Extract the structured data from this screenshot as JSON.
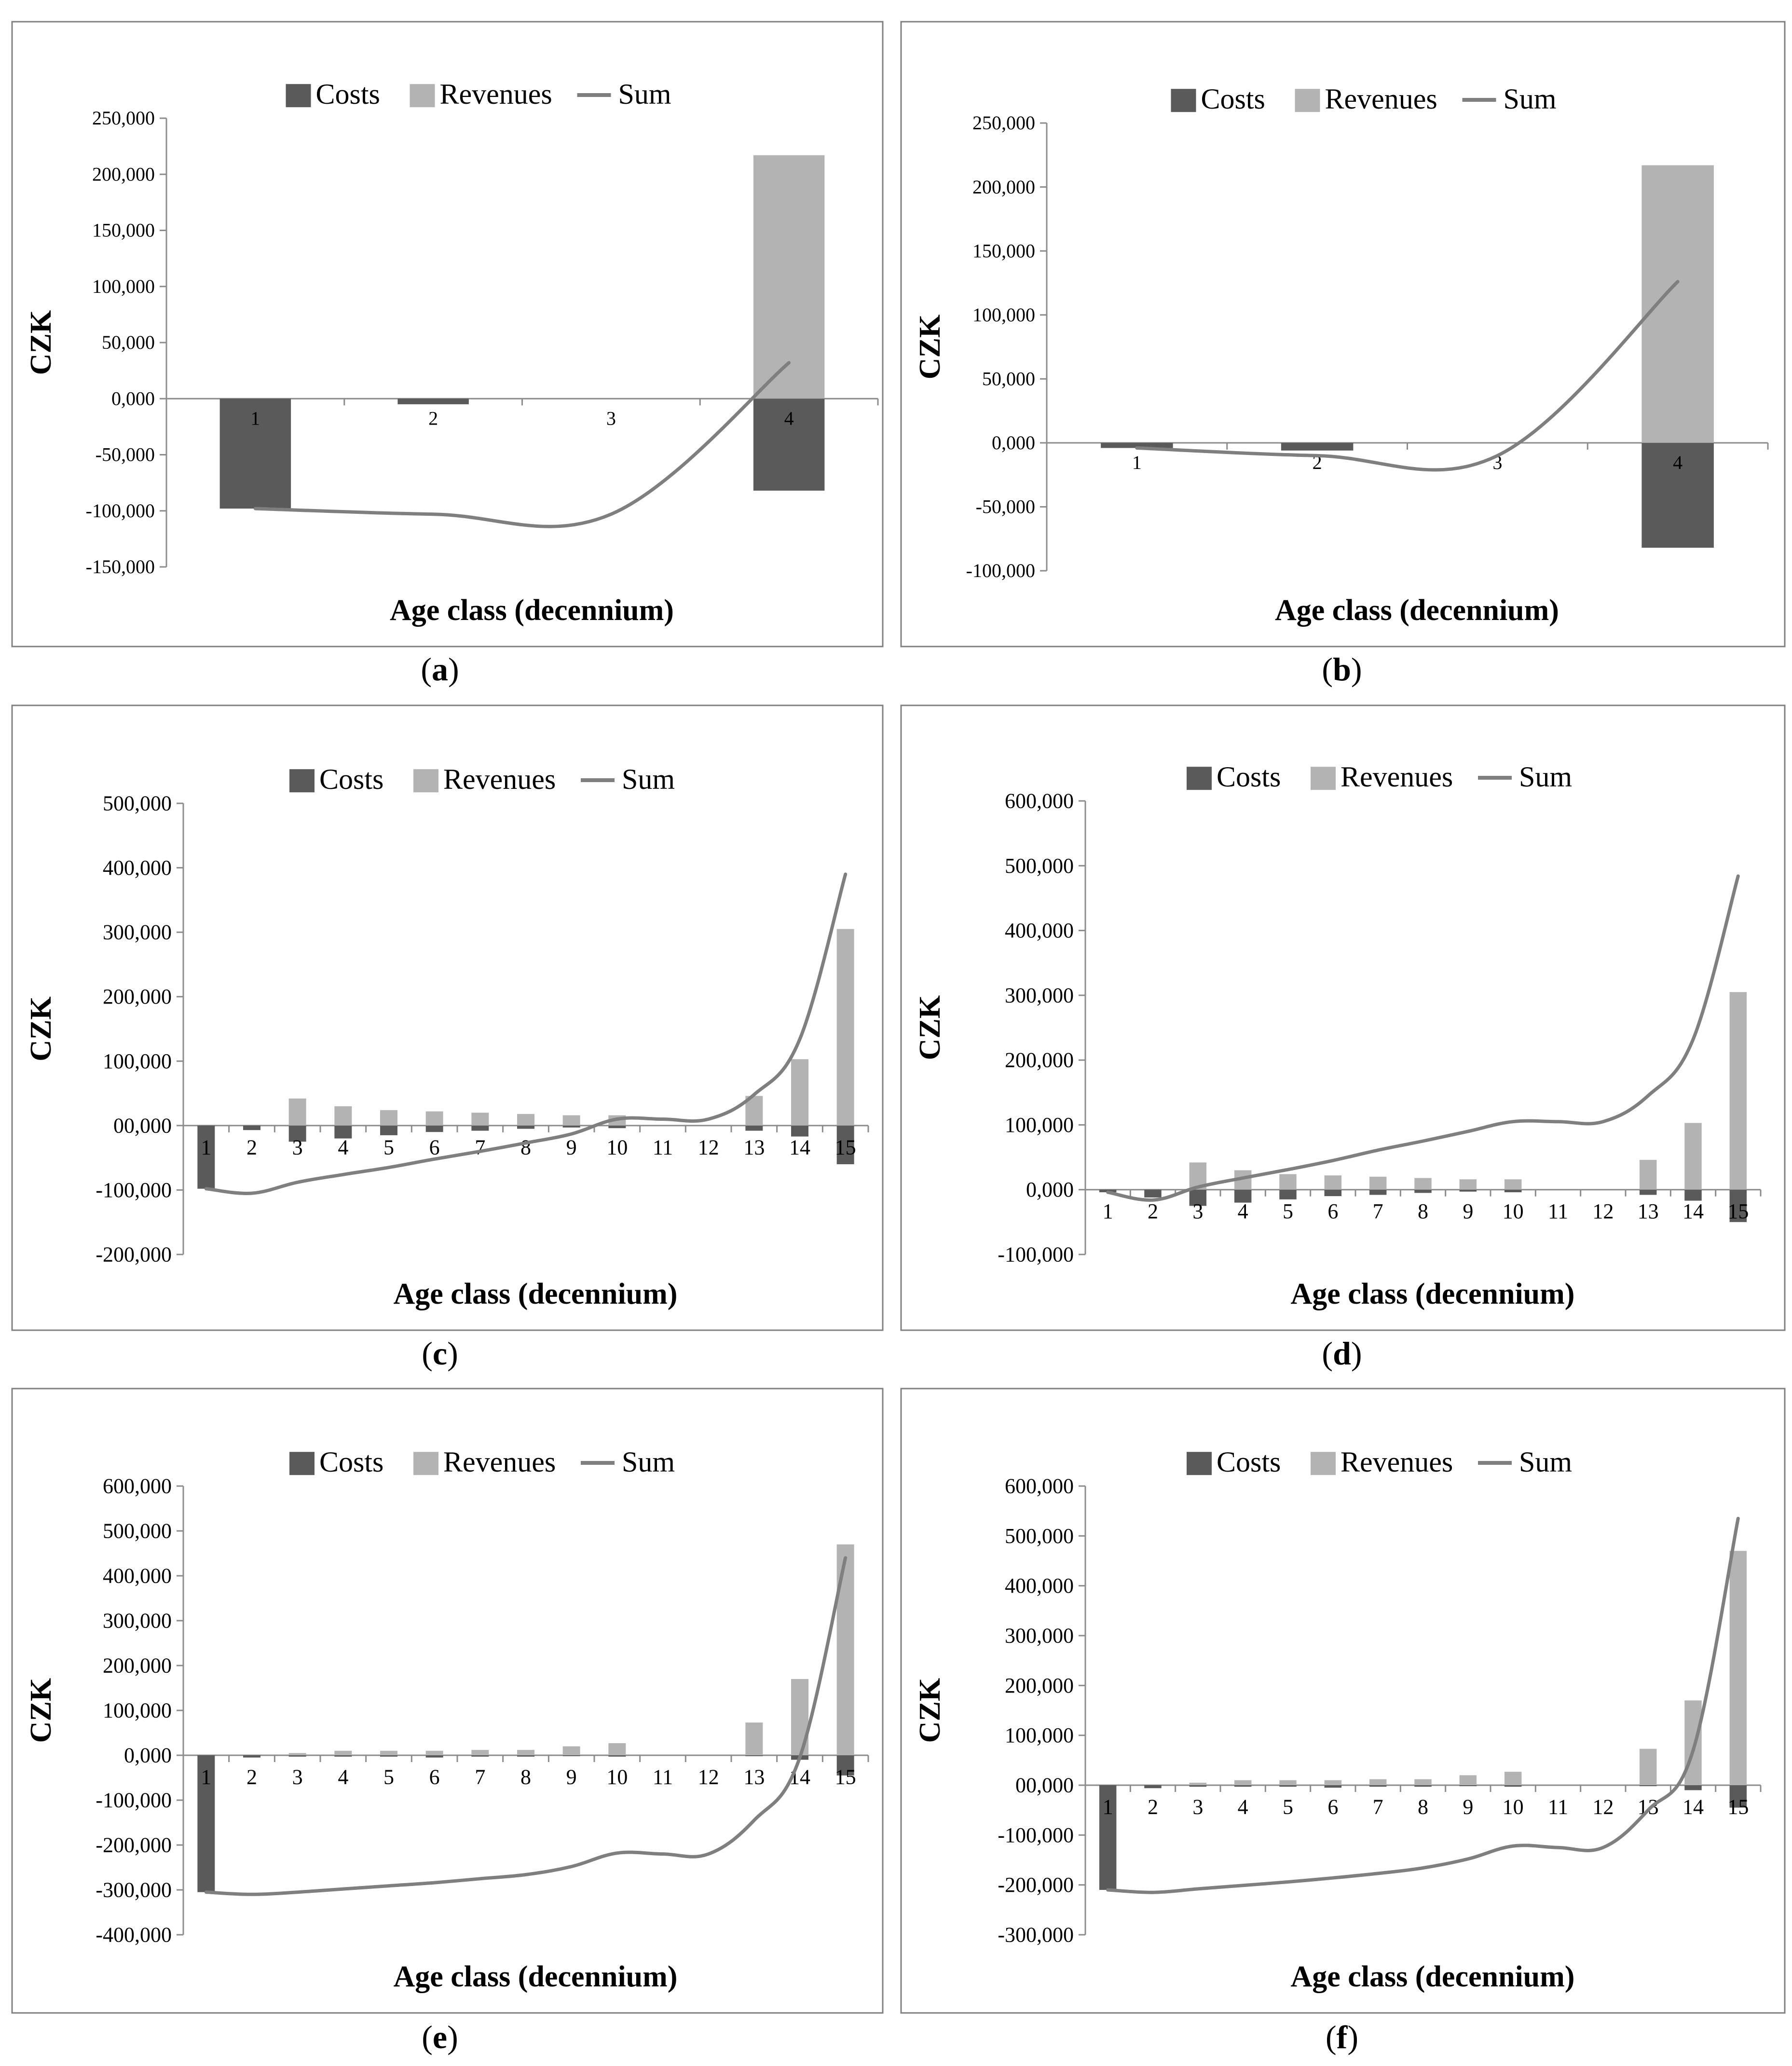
{
  "figure": {
    "colors": {
      "costs": "#5a5a5a",
      "revenues": "#b3b3b3",
      "sum": "#7f7f7f",
      "axis": "#8c8c8c",
      "border": "#808080"
    }
  },
  "chart_data": [
    {
      "id": "a",
      "type": "bar",
      "panel_label": "(a)",
      "ylabel": "CZK",
      "xlabel": "Age class (decennium)",
      "legend": [
        "Costs",
        "Revenues",
        "Sum"
      ],
      "legend_position": "top-center",
      "ylim": [
        -150000,
        250000
      ],
      "yticks": [
        250000,
        200000,
        150000,
        100000,
        50000,
        0,
        -50000,
        -100000,
        -150000
      ],
      "ytick_labels": [
        "250,000",
        "200,000",
        "150,000",
        "100,000",
        "50,000",
        "0,000",
        "-50,000",
        "-100,000",
        "-150,000"
      ],
      "categories": [
        "1",
        "2",
        "3",
        "4"
      ],
      "series": [
        {
          "name": "Costs",
          "values": [
            -98000,
            -5000,
            0,
            -82000
          ]
        },
        {
          "name": "Revenues",
          "values": [
            0,
            0,
            0,
            217000
          ]
        },
        {
          "name": "Sum",
          "values": [
            -98000,
            -103000,
            -103000,
            32000
          ]
        }
      ]
    },
    {
      "id": "b",
      "type": "bar",
      "panel_label": "(b)",
      "ylabel": "CZK",
      "xlabel": "Age class (decennium)",
      "legend": [
        "Costs",
        "Revenues",
        "Sum"
      ],
      "legend_position": "top-center",
      "ylim": [
        -100000,
        250000
      ],
      "yticks": [
        250000,
        200000,
        150000,
        100000,
        50000,
        0,
        -50000,
        -100000
      ],
      "ytick_labels": [
        "250,000",
        "200,000",
        "150,000",
        "100,000",
        "50,000",
        "0,000",
        "-50,000",
        "-100,000"
      ],
      "categories": [
        "1",
        "2",
        "3",
        "4"
      ],
      "series": [
        {
          "name": "Costs",
          "values": [
            -4000,
            -6000,
            0,
            -82000
          ]
        },
        {
          "name": "Revenues",
          "values": [
            0,
            0,
            0,
            217000
          ]
        },
        {
          "name": "Sum",
          "values": [
            -4000,
            -10000,
            -10000,
            126000
          ]
        }
      ]
    },
    {
      "id": "c",
      "type": "bar",
      "panel_label": "(c)",
      "ylabel": "CZK",
      "xlabel": "Age class (decennium)",
      "legend": [
        "Costs",
        "Revenues",
        "Sum"
      ],
      "legend_position": "top-center",
      "ylim": [
        -200000,
        500000
      ],
      "yticks": [
        500000,
        400000,
        300000,
        200000,
        100000,
        0,
        -100000,
        -200000
      ],
      "ytick_labels": [
        "500,000",
        "400,000",
        "300,000",
        "200,000",
        "100,000",
        "00,000",
        "-100,000",
        "-200,000"
      ],
      "categories": [
        "1",
        "2",
        "3",
        "4",
        "5",
        "6",
        "7",
        "8",
        "9",
        "10",
        "11",
        "12",
        "13",
        "14",
        "15"
      ],
      "series": [
        {
          "name": "Costs",
          "values": [
            -98000,
            -7000,
            -25000,
            -20000,
            -15000,
            -10000,
            -8000,
            -5000,
            -3000,
            -4000,
            0,
            0,
            -8000,
            -17000,
            -60000
          ]
        },
        {
          "name": "Revenues",
          "values": [
            0,
            0,
            42000,
            30000,
            24000,
            22000,
            20000,
            18000,
            16000,
            16000,
            0,
            0,
            46000,
            103000,
            305000
          ]
        },
        {
          "name": "Sum",
          "values": [
            -98000,
            -105000,
            -88000,
            -76000,
            -65000,
            -52000,
            -40000,
            -27000,
            -13000,
            10000,
            10000,
            10000,
            48000,
            134000,
            390000
          ]
        }
      ]
    },
    {
      "id": "d",
      "type": "bar",
      "panel_label": "(d)",
      "ylabel": "CZK",
      "xlabel": "Age class (decennium)",
      "legend": [
        "Costs",
        "Revenues",
        "Sum"
      ],
      "legend_position": "top-center",
      "ylim": [
        -100000,
        600000
      ],
      "yticks": [
        600000,
        500000,
        400000,
        300000,
        200000,
        100000,
        0,
        -100000
      ],
      "ytick_labels": [
        "600,000",
        "500,000",
        "400,000",
        "300,000",
        "200,000",
        "100,000",
        "0,000",
        "-100,000"
      ],
      "categories": [
        "1",
        "2",
        "3",
        "4",
        "5",
        "6",
        "7",
        "8",
        "9",
        "10",
        "11",
        "12",
        "13",
        "14",
        "15"
      ],
      "series": [
        {
          "name": "Costs",
          "values": [
            -4000,
            -12000,
            -25000,
            -20000,
            -15000,
            -10000,
            -8000,
            -5000,
            -3000,
            -4000,
            0,
            0,
            -8000,
            -17000,
            -50000
          ]
        },
        {
          "name": "Revenues",
          "values": [
            0,
            0,
            42000,
            30000,
            24000,
            22000,
            20000,
            18000,
            16000,
            16000,
            0,
            0,
            46000,
            103000,
            305000
          ]
        },
        {
          "name": "Sum",
          "values": [
            -4000,
            -16000,
            4000,
            18000,
            31000,
            45000,
            61000,
            75000,
            90000,
            105000,
            105000,
            105000,
            145000,
            232000,
            484000
          ]
        }
      ]
    },
    {
      "id": "e",
      "type": "bar",
      "panel_label": "(e)",
      "ylabel": "CZK",
      "xlabel": "Age class (decennium)",
      "legend": [
        "Costs",
        "Revenues",
        "Sum"
      ],
      "legend_position": "top-center",
      "ylim": [
        -400000,
        600000
      ],
      "yticks": [
        600000,
        500000,
        400000,
        300000,
        200000,
        100000,
        0,
        -100000,
        -200000,
        -300000,
        -400000
      ],
      "ytick_labels": [
        "600,000",
        "500,000",
        "400,000",
        "300,000",
        "200,000",
        "100,000",
        "0,000",
        "-100,000",
        "-200,000",
        "-300,000",
        "-400,000"
      ],
      "categories": [
        "1",
        "2",
        "3",
        "4",
        "5",
        "6",
        "7",
        "8",
        "9",
        "10",
        "11",
        "12",
        "13",
        "14",
        "15"
      ],
      "series": [
        {
          "name": "Costs",
          "values": [
            -305000,
            -5000,
            -3000,
            -3000,
            -3000,
            -5000,
            -3000,
            -3000,
            -2000,
            -3000,
            0,
            0,
            -2000,
            -10000,
            -45000
          ]
        },
        {
          "name": "Revenues",
          "values": [
            0,
            0,
            5000,
            10000,
            10000,
            10000,
            12000,
            12000,
            20000,
            27000,
            0,
            0,
            73000,
            170000,
            470000
          ]
        },
        {
          "name": "Sum",
          "values": [
            -305000,
            -310000,
            -305000,
            -298000,
            -291000,
            -284000,
            -275000,
            -266000,
            -248000,
            -218000,
            -220000,
            -220000,
            -145000,
            -5000,
            440000
          ]
        }
      ]
    },
    {
      "id": "f",
      "type": "bar",
      "panel_label": "(f)",
      "ylabel": "CZK",
      "xlabel": "Age class (decennium)",
      "legend": [
        "Costs",
        "Revenues",
        "Sum"
      ],
      "legend_position": "top-center",
      "ylim": [
        -300000,
        600000
      ],
      "yticks": [
        600000,
        500000,
        400000,
        300000,
        200000,
        100000,
        0,
        -100000,
        -200000,
        -300000
      ],
      "ytick_labels": [
        "600,000",
        "500,000",
        "400,000",
        "300,000",
        "200,000",
        "100,000",
        "00,000",
        "-100,000",
        "-200,000",
        "-300,000"
      ],
      "categories": [
        "1",
        "2",
        "3",
        "4",
        "5",
        "6",
        "7",
        "8",
        "9",
        "10",
        "11",
        "12",
        "13",
        "14",
        "15"
      ],
      "series": [
        {
          "name": "Costs",
          "values": [
            -210000,
            -6000,
            -3000,
            -3000,
            -3000,
            -5000,
            -3000,
            -3000,
            -2000,
            -3000,
            0,
            0,
            -2000,
            -10000,
            -45000
          ]
        },
        {
          "name": "Revenues",
          "values": [
            0,
            0,
            5000,
            10000,
            10000,
            10000,
            12000,
            12000,
            20000,
            27000,
            0,
            0,
            73000,
            170000,
            470000
          ]
        },
        {
          "name": "Sum",
          "values": [
            -210000,
            -215000,
            -208000,
            -201000,
            -194000,
            -186000,
            -177000,
            -166000,
            -148000,
            -122000,
            -125000,
            -125000,
            -50000,
            70000,
            535000
          ]
        }
      ]
    }
  ]
}
